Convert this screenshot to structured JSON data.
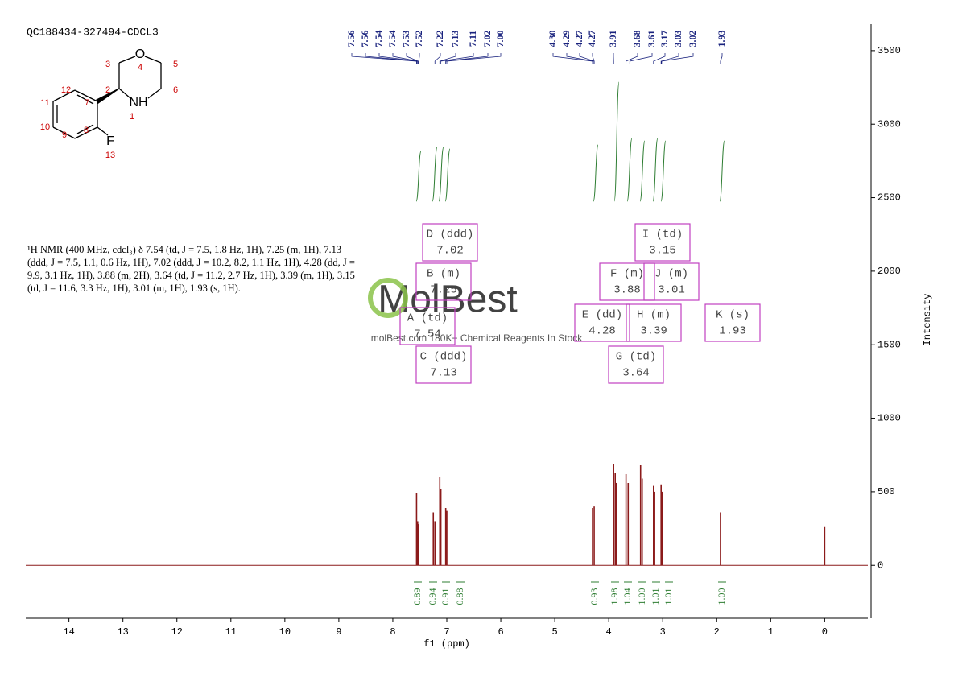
{
  "chart_data": {
    "type": "peaks",
    "title": "QC188434-327494-CDCL3",
    "xlabel": "f1 (ppm)",
    "ylabel": "Intensity",
    "xlim": [
      14.8,
      -0.8
    ],
    "xticks": [
      14,
      13,
      12,
      11,
      10,
      9,
      8,
      7,
      6,
      5,
      4,
      3,
      2,
      1,
      0
    ],
    "ylim": [
      -360,
      3680
    ],
    "yticks": [
      0,
      500,
      1000,
      1500,
      2000,
      2500,
      3000,
      3500
    ],
    "color": "#8b1a1a",
    "x": [
      7.56,
      7.54,
      7.53,
      7.25,
      7.22,
      7.13,
      7.11,
      7.02,
      7.0,
      4.3,
      4.27,
      3.91,
      3.88,
      3.86,
      3.68,
      3.64,
      3.41,
      3.38,
      3.17,
      3.15,
      3.03,
      3.01,
      1.93,
      0.0
    ],
    "values": [
      490,
      300,
      280,
      360,
      300,
      600,
      520,
      390,
      370,
      390,
      400,
      690,
      630,
      560,
      620,
      560,
      680,
      590,
      540,
      500,
      550,
      500,
      360,
      260
    ],
    "peak_labels": [
      "7.56",
      "7.56",
      "7.54",
      "7.54",
      "7.53",
      "7.52",
      "7.22",
      "7.13",
      "7.11",
      "7.02",
      "7.00",
      "4.30",
      "4.29",
      "4.27",
      "4.27",
      "3.91",
      "3.68",
      "3.61",
      "3.17",
      "3.03",
      "3.02",
      "1.93"
    ],
    "multiplets": [
      {
        "label": "A (td)",
        "shift": "7.54"
      },
      {
        "label": "B (m)",
        "shift": "7.25"
      },
      {
        "label": "C (ddd)",
        "shift": "7.13"
      },
      {
        "label": "D (ddd)",
        "shift": "7.02"
      },
      {
        "label": "E (dd)",
        "shift": "4.28"
      },
      {
        "label": "F (m)",
        "shift": "3.88"
      },
      {
        "label": "G (td)",
        "shift": "3.64"
      },
      {
        "label": "H (m)",
        "shift": "3.39"
      },
      {
        "label": "I (td)",
        "shift": "3.15"
      },
      {
        "label": "J (m)",
        "shift": "3.01"
      },
      {
        "label": "K (s)",
        "shift": "1.93"
      }
    ],
    "integrals": [
      "0.89",
      "0.94",
      "0.91",
      "0.88",
      "0.93",
      "1.98",
      "1.04",
      "1.00",
      "1.01",
      "1.01",
      "1.00"
    ],
    "description": "¹H NMR (400 MHz, cdcl₃) δ 7.54 (td, J = 7.5, 1.8 Hz, 1H), 7.25 (m, 1H), 7.13 (ddd, J = 7.5, 1.1, 0.6 Hz, 1H), 7.02 (ddd, J = 10.2, 8.2, 1.1 Hz, 1H), 4.28 (dd, J = 9.9, 3.1 Hz, 1H), 3.88 (m, 2H), 3.64 (td, J = 11.2, 2.7 Hz, 1H), 3.39 (m, 1H), 3.15 (td, J = 11.6, 3.3 Hz, 1H), 3.01 (m, 1H), 1.93 (s, 1H).",
    "watermark": "MolBest",
    "watermark_sub": "molBest.com 180K+ Chemical Reagents In Stock",
    "atoms": [
      "O",
      "3",
      "4",
      "5",
      "6",
      "NH",
      "1",
      "2",
      "7",
      "12",
      "11",
      "10",
      "9",
      "8",
      "F",
      "13"
    ]
  }
}
